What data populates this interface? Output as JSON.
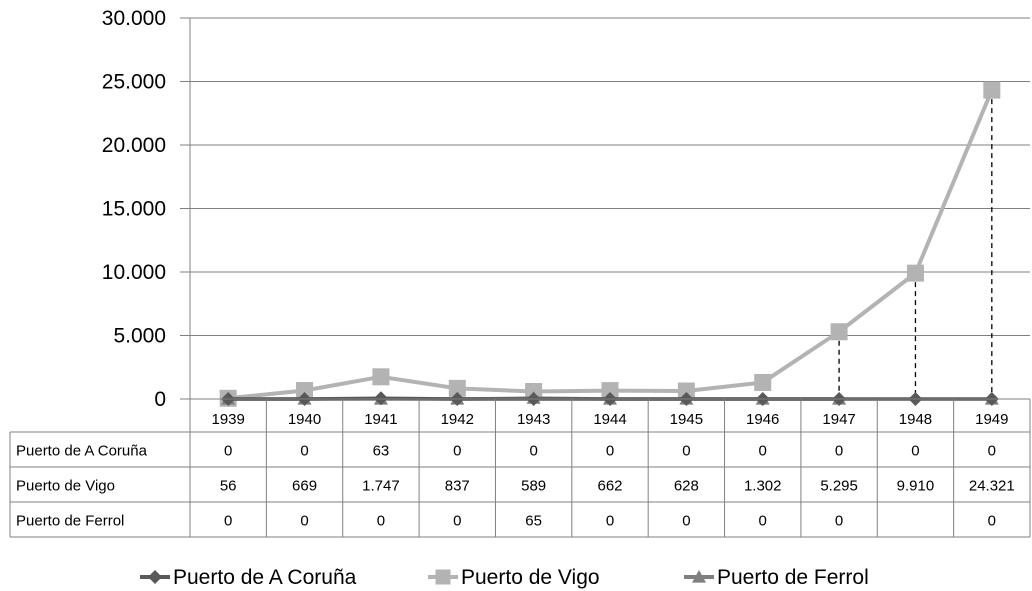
{
  "chart_data": {
    "type": "line",
    "title": "",
    "xlabel": "",
    "ylabel": "",
    "ylim": [
      0,
      30000
    ],
    "yticks": [
      "0",
      "5.000",
      "10.000",
      "15.000",
      "20.000",
      "25.000",
      "30.000"
    ],
    "ytick_values": [
      0,
      5000,
      10000,
      15000,
      20000,
      25000,
      30000
    ],
    "grid": "horizontal",
    "legend_position": "bottom",
    "categories": [
      "1939",
      "1940",
      "1941",
      "1942",
      "1943",
      "1944",
      "1945",
      "1946",
      "1947",
      "1948",
      "1949"
    ],
    "series": [
      {
        "name": "Puerto de A Coruña",
        "color": "#595959",
        "marker": "diamond",
        "values": [
          0,
          0,
          63,
          0,
          0,
          0,
          0,
          0,
          0,
          0,
          0
        ],
        "table_labels": [
          "0",
          "0",
          "63",
          "0",
          "0",
          "0",
          "0",
          "0",
          "0",
          "0",
          "0"
        ]
      },
      {
        "name": "Puerto de Vigo",
        "color": "#b3b3b3",
        "marker": "square",
        "values": [
          56,
          669,
          1747,
          837,
          589,
          662,
          628,
          1302,
          5295,
          9910,
          24321
        ],
        "table_labels": [
          "56",
          "669",
          "1.747",
          "837",
          "589",
          "662",
          "628",
          "1.302",
          "5.295",
          "9.910",
          "24.321"
        ]
      },
      {
        "name": "Puerto de Ferrol",
        "color": "#7f7f7f",
        "marker": "triangle",
        "values": [
          0,
          0,
          0,
          0,
          65,
          0,
          0,
          0,
          0,
          null,
          0
        ],
        "table_labels": [
          "0",
          "0",
          "0",
          "0",
          "65",
          "0",
          "0",
          "0",
          "0",
          "",
          "0"
        ]
      }
    ],
    "drop_lines": true
  }
}
